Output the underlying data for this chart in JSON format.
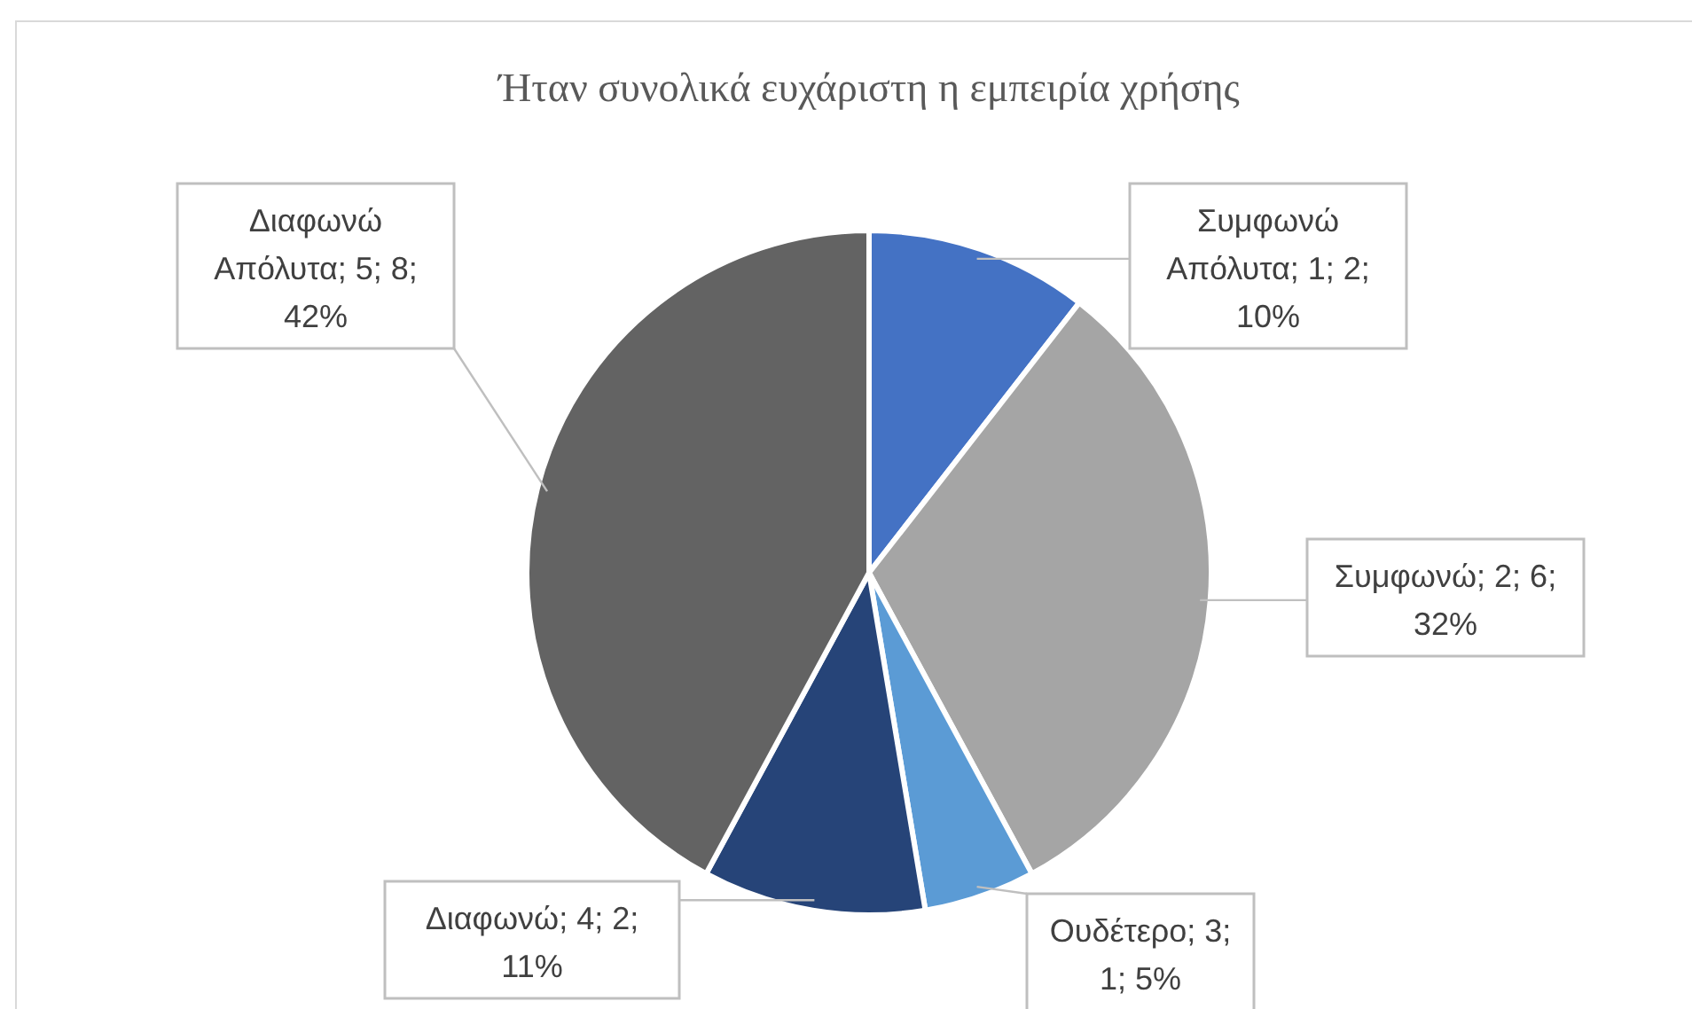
{
  "chart_data": {
    "type": "pie",
    "title": "Ήταν συνολικά ευχάριστη η εμπειρία  χρήσης",
    "categories": [
      "Συμφωνώ Απόλυτα",
      "Συμφωνώ",
      "Ουδέτερο",
      "Διαφωνώ",
      "Διαφωνώ Απόλυτα"
    ],
    "values": [
      2,
      6,
      1,
      2,
      8
    ],
    "colors": [
      "#4472c4",
      "#a5a5a5",
      "#5b9bd5",
      "#264478",
      "#636363"
    ],
    "value_labels": [
      "; 1; 2; 10%",
      "; 2; 6; 32%",
      "; 3; 1; 5%",
      "; 4; 2; 11%",
      "; 5; 8; 42%"
    ]
  }
}
